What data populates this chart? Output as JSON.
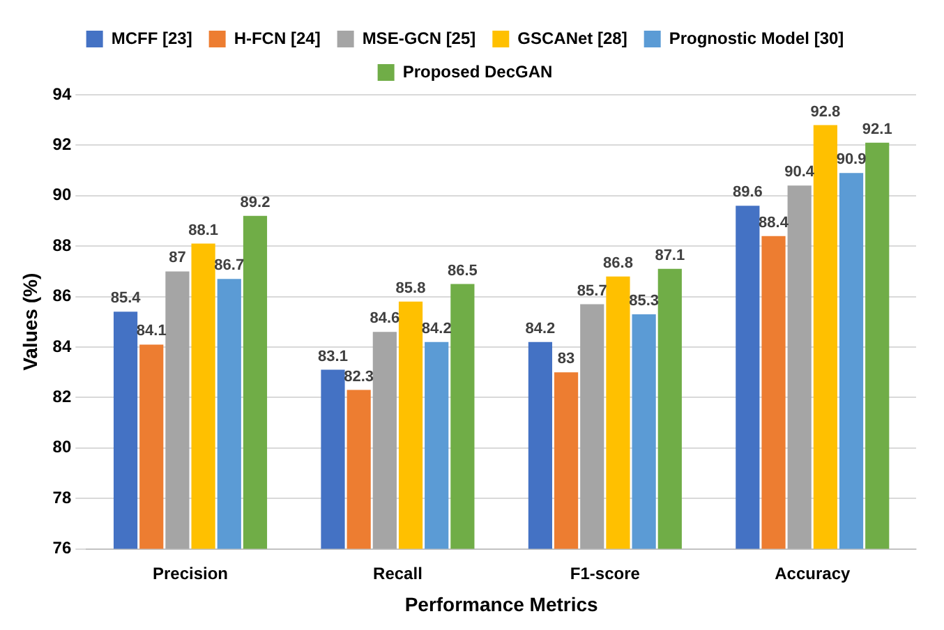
{
  "chart_data": {
    "type": "bar",
    "xlabel": "Performance Metrics",
    "ylabel": "Values (%)",
    "categories": [
      "Precision",
      "Recall",
      "F1-score",
      "Accuracy"
    ],
    "series": [
      {
        "name": "MCFF [23]",
        "color": "#4472c4",
        "values": [
          85.4,
          83.1,
          84.2,
          89.6
        ]
      },
      {
        "name": "H-FCN [24]",
        "color": "#ed7d31",
        "values": [
          84.1,
          82.3,
          83,
          88.4
        ]
      },
      {
        "name": "MSE-GCN [25]",
        "color": "#a5a5a5",
        "values": [
          87,
          84.6,
          85.7,
          90.4
        ]
      },
      {
        "name": "GSCANet [28]",
        "color": "#ffc000",
        "values": [
          88.1,
          85.8,
          86.8,
          92.8
        ]
      },
      {
        "name": "Prognostic Model [30]",
        "color": "#5b9bd5",
        "values": [
          86.7,
          84.2,
          85.3,
          90.9
        ]
      },
      {
        "name": "Proposed DecGAN",
        "color": "#70ad47",
        "values": [
          89.2,
          86.5,
          87.1,
          92.1
        ]
      }
    ],
    "ylim": [
      76,
      94
    ],
    "yticks": [
      76,
      78,
      80,
      82,
      84,
      86,
      88,
      90,
      92,
      94
    ],
    "grid": "y",
    "legend": "top",
    "data_labels": true
  }
}
